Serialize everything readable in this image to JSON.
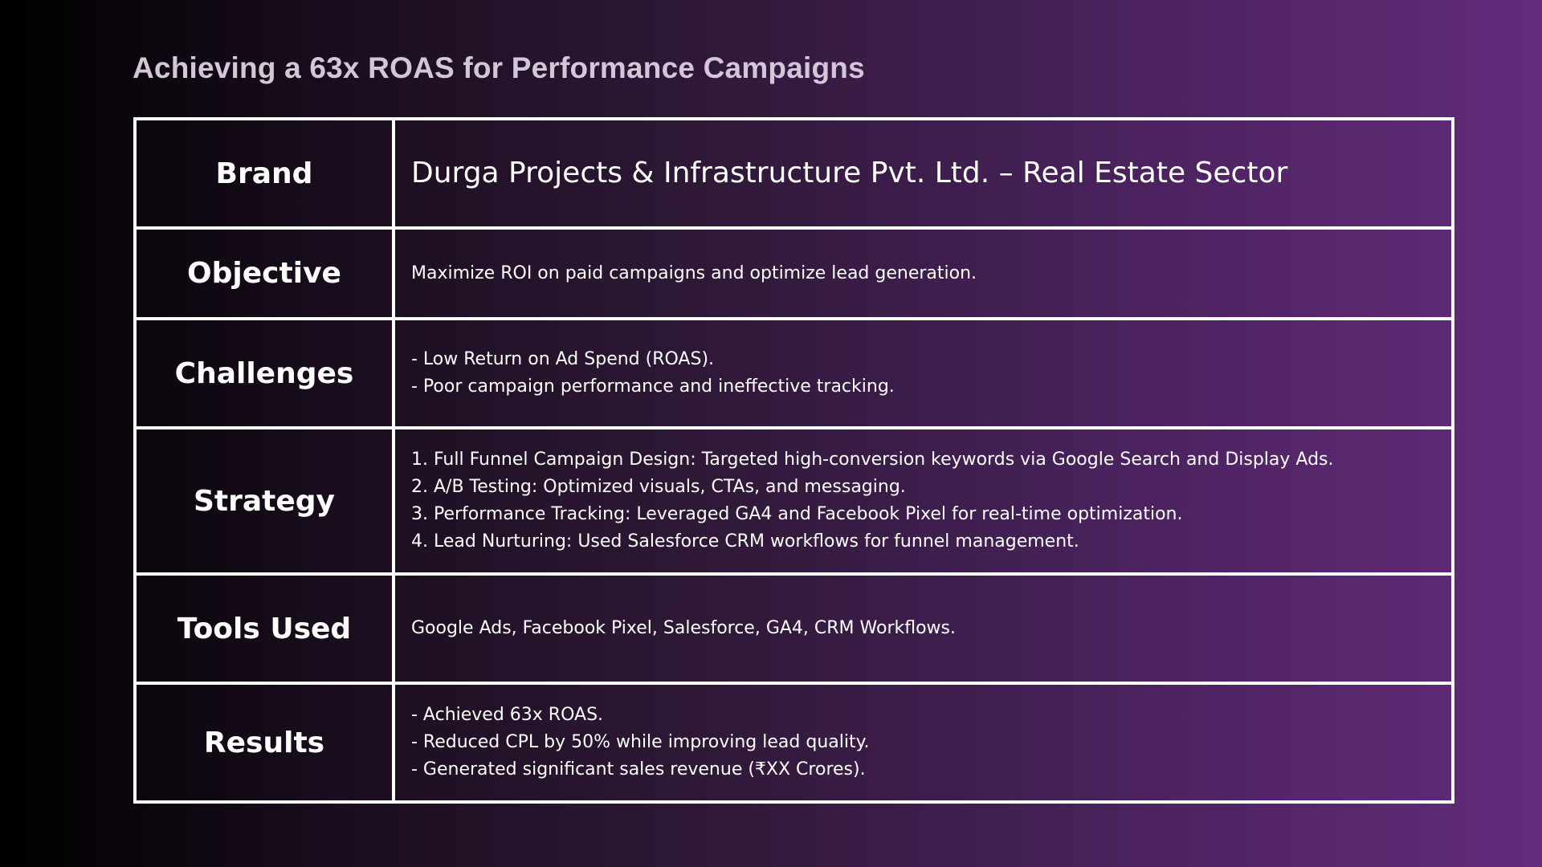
{
  "slide": {
    "title": "Achieving a 63x ROAS for Performance Campaigns"
  },
  "table": {
    "rows": [
      {
        "label": "Brand",
        "lines": [
          "Durga Projects & Infrastructure Pvt. Ltd. – Real Estate Sector"
        ]
      },
      {
        "label": "Objective",
        "lines": [
          "Maximize ROI on paid campaigns and optimize lead generation."
        ]
      },
      {
        "label": "Challenges",
        "lines": [
          "- Low Return on Ad Spend (ROAS).",
          "- Poor campaign performance and ineffective tracking."
        ]
      },
      {
        "label": "Strategy",
        "lines": [
          "1. Full Funnel Campaign Design: Targeted high-conversion keywords via Google Search and Display Ads.",
          "2. A/B Testing: Optimized visuals, CTAs, and messaging.",
          "3. Performance Tracking: Leveraged GA4 and Facebook Pixel for real-time optimization.",
          "4. Lead Nurturing: Used Salesforce CRM workflows for funnel management."
        ]
      },
      {
        "label": "Tools Used",
        "lines": [
          "Google Ads, Facebook Pixel, Salesforce, GA4, CRM Workflows."
        ]
      },
      {
        "label": "Results",
        "lines": [
          "- Achieved 63x ROAS.",
          "- Reduced CPL by 50% while improving lead quality.",
          "- Generated significant sales revenue (₹XX Crores)."
        ]
      }
    ]
  }
}
